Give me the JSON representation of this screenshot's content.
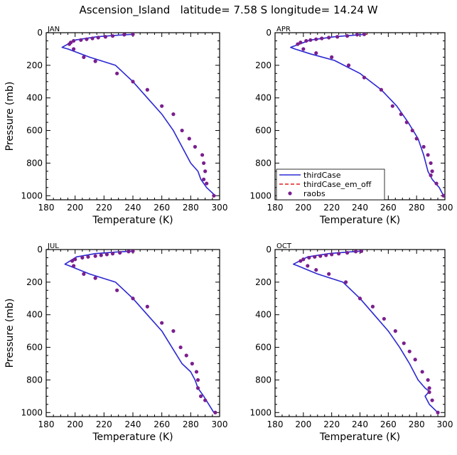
{
  "title": "Ascension_Island   latitude= 7.58 S longitude= 14.24 W",
  "colors": {
    "thirdCase": "#2b2bd6",
    "thirdCase_em_off": "#e0201a",
    "raobs": "#7a1f8f",
    "axis": "#000000"
  },
  "legend": {
    "placement": "lower-left of APR panel",
    "entries": [
      {
        "label": "thirdCase",
        "style": "solid line",
        "color": "#2b2bd6"
      },
      {
        "label": "thirdCase_em_off",
        "style": "dashed line",
        "color": "#e0201a"
      },
      {
        "label": "raobs",
        "style": "dot",
        "color": "#7a1f8f"
      }
    ]
  },
  "chart_data": [
    {
      "type": "line",
      "panel": "JAN",
      "xlabel": "Temperature (K)",
      "ylabel": "Pressure (mb)",
      "xlim": [
        180,
        300
      ],
      "ylim": [
        1025,
        0
      ],
      "xticks": [
        180,
        200,
        220,
        240,
        260,
        280,
        300
      ],
      "yticks": [
        0,
        200,
        400,
        600,
        800,
        1000
      ],
      "series": [
        {
          "name": "thirdCase",
          "x": [
            240,
            230,
            215,
            200,
            191,
            195,
            210,
            228,
            240,
            250,
            260,
            268,
            274,
            280,
            285,
            287,
            291,
            297
          ],
          "y": [
            10,
            15,
            25,
            45,
            90,
            100,
            150,
            200,
            300,
            400,
            500,
            600,
            700,
            800,
            850,
            900,
            950,
            1000
          ]
        },
        {
          "name": "thirdCase_em_off",
          "x": [
            241,
            230,
            215,
            200,
            191,
            195,
            210,
            228,
            240,
            250,
            260,
            268,
            274,
            280,
            285,
            287,
            291,
            297
          ],
          "y": [
            10,
            15,
            25,
            45,
            90,
            100,
            150,
            200,
            300,
            400,
            500,
            600,
            700,
            800,
            850,
            900,
            950,
            1000
          ]
        },
        {
          "name": "raobs",
          "x": [
            240,
            234,
            226,
            221,
            216,
            212,
            208,
            204,
            199,
            197,
            196,
            199,
            206,
            214,
            229,
            240,
            250,
            260,
            268,
            274,
            279,
            283,
            288,
            289,
            290,
            289,
            291,
            296
          ],
          "y": [
            10,
            12,
            20,
            25,
            30,
            35,
            40,
            45,
            50,
            60,
            70,
            100,
            150,
            175,
            250,
            300,
            350,
            450,
            500,
            600,
            650,
            700,
            750,
            800,
            850,
            900,
            925,
            1000
          ]
        }
      ]
    },
    {
      "type": "line",
      "panel": "APR",
      "xlabel": "Temperature (K)",
      "ylabel": "",
      "xlim": [
        180,
        300
      ],
      "ylim": [
        1025,
        0
      ],
      "xticks": [
        180,
        200,
        220,
        240,
        260,
        280,
        300
      ],
      "yticks": [
        0,
        200,
        400,
        600,
        800,
        1000
      ],
      "series": [
        {
          "name": "thirdCase",
          "x": [
            244,
            236,
            222,
            205,
            191,
            194,
            205,
            222,
            240,
            255,
            266,
            274,
            281,
            285,
            288,
            291,
            296,
            299
          ],
          "y": [
            10,
            15,
            25,
            45,
            90,
            100,
            130,
            170,
            250,
            350,
            450,
            550,
            650,
            750,
            850,
            900,
            950,
            1000
          ]
        },
        {
          "name": "thirdCase_em_off",
          "x": [
            245,
            236,
            222,
            205,
            191,
            194,
            205,
            222,
            240,
            255,
            266,
            274,
            281,
            285,
            288,
            291,
            296,
            299
          ],
          "y": [
            10,
            15,
            25,
            45,
            90,
            100,
            130,
            170,
            250,
            350,
            450,
            550,
            650,
            750,
            850,
            900,
            950,
            1000
          ]
        },
        {
          "name": "raobs",
          "x": [
            243,
            238,
            231,
            224,
            218,
            213,
            209,
            205,
            202,
            198,
            196,
            200,
            209,
            220,
            232,
            243,
            255,
            263,
            269,
            273,
            277,
            280,
            285,
            288,
            290,
            291,
            290,
            294,
            299
          ],
          "y": [
            10,
            12,
            20,
            25,
            30,
            35,
            40,
            45,
            50,
            60,
            70,
            100,
            125,
            150,
            200,
            275,
            350,
            450,
            500,
            550,
            600,
            650,
            700,
            750,
            800,
            850,
            875,
            925,
            1000
          ]
        }
      ]
    },
    {
      "type": "line",
      "panel": "JUL",
      "xlabel": "Temperature (K)",
      "ylabel": "Pressure (mb)",
      "xlim": [
        180,
        300
      ],
      "ylim": [
        1025,
        0
      ],
      "xticks": [
        180,
        200,
        220,
        240,
        260,
        280,
        300
      ],
      "yticks": [
        0,
        200,
        400,
        600,
        800,
        1000
      ],
      "series": [
        {
          "name": "thirdCase",
          "x": [
            239,
            229,
            214,
            201,
            193,
            196,
            210,
            228,
            240,
            250,
            260,
            267,
            274,
            280,
            283,
            285,
            289,
            296
          ],
          "y": [
            10,
            15,
            25,
            45,
            90,
            100,
            150,
            200,
            300,
            400,
            500,
            600,
            700,
            750,
            800,
            850,
            900,
            1000
          ]
        },
        {
          "name": "thirdCase_em_off",
          "x": [
            240,
            229,
            214,
            201,
            193,
            196,
            210,
            228,
            240,
            250,
            260,
            267,
            274,
            280,
            283,
            285,
            289,
            296
          ],
          "y": [
            10,
            15,
            25,
            45,
            90,
            100,
            150,
            200,
            300,
            400,
            500,
            600,
            700,
            750,
            800,
            850,
            900,
            1000
          ]
        },
        {
          "name": "raobs",
          "x": [
            240,
            237,
            231,
            226,
            222,
            218,
            214,
            209,
            205,
            200,
            198,
            199,
            206,
            214,
            229,
            240,
            250,
            260,
            268,
            273,
            277,
            281,
            284,
            285,
            285,
            287,
            290,
            297
          ],
          "y": [
            10,
            12,
            20,
            25,
            30,
            35,
            40,
            45,
            50,
            60,
            70,
            100,
            150,
            175,
            250,
            300,
            350,
            450,
            500,
            600,
            650,
            700,
            750,
            800,
            850,
            900,
            925,
            1000
          ]
        }
      ]
    },
    {
      "type": "line",
      "panel": "OCT",
      "xlabel": "Temperature (K)",
      "ylabel": "",
      "xlim": [
        180,
        300
      ],
      "ylim": [
        1025,
        0
      ],
      "xticks": [
        180,
        200,
        220,
        240,
        260,
        280,
        300
      ],
      "yticks": [
        0,
        200,
        400,
        600,
        800,
        1000
      ],
      "series": [
        {
          "name": "thirdCase",
          "x": [
            240,
            232,
            218,
            203,
            193,
            196,
            210,
            228,
            240,
            250,
            260,
            268,
            275,
            281,
            286,
            289,
            286,
            289,
            295
          ],
          "y": [
            10,
            15,
            25,
            45,
            90,
            100,
            150,
            200,
            300,
            400,
            500,
            600,
            700,
            800,
            850,
            870,
            900,
            950,
            1000
          ]
        },
        {
          "name": "thirdCase_em_off",
          "x": [
            241,
            232,
            218,
            203,
            193,
            196,
            210,
            228,
            240,
            250,
            260,
            268,
            275,
            281,
            286,
            289,
            286,
            289,
            295
          ],
          "y": [
            10,
            15,
            25,
            45,
            90,
            100,
            150,
            200,
            300,
            400,
            500,
            600,
            700,
            800,
            850,
            870,
            900,
            950,
            1000
          ]
        },
        {
          "name": "raobs",
          "x": [
            241,
            237,
            231,
            225,
            220,
            216,
            212,
            208,
            204,
            200,
            198,
            203,
            209,
            218,
            230,
            240,
            249,
            257,
            265,
            271,
            275,
            279,
            284,
            288,
            289,
            289,
            291,
            295
          ],
          "y": [
            10,
            12,
            20,
            25,
            30,
            35,
            40,
            45,
            50,
            60,
            70,
            100,
            125,
            150,
            200,
            300,
            350,
            425,
            500,
            575,
            625,
            675,
            750,
            800,
            850,
            875,
            925,
            1000
          ]
        }
      ]
    }
  ]
}
